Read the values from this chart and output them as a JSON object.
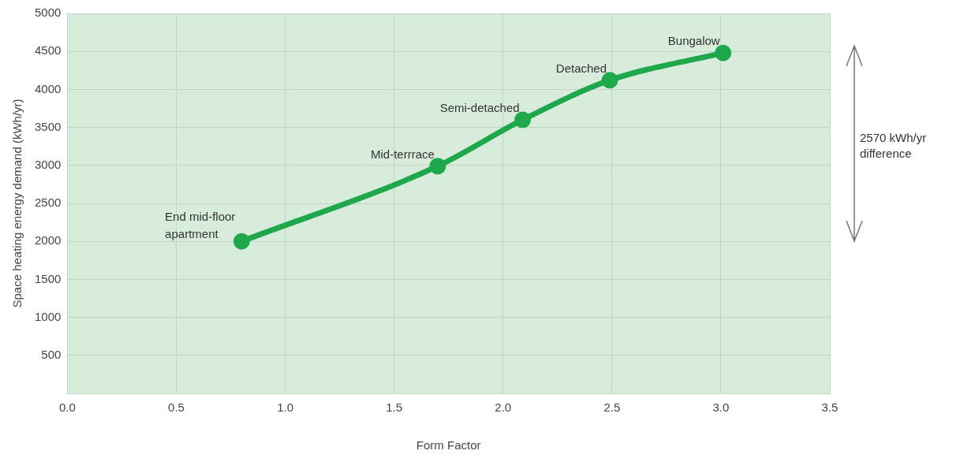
{
  "chart_data": {
    "type": "line",
    "xlabel": "Form Factor",
    "ylabel": "Space heating energy demand (kWh/yr)",
    "x": [
      0.8,
      1.7,
      2.09,
      2.49,
      3.01
    ],
    "series": [
      {
        "color": "#1ea84b",
        "values": [
          2000,
          2990,
          3600,
          4120,
          4480
        ]
      }
    ],
    "xlim": [
      0,
      3.5
    ],
    "xticks": [
      {
        "value": 0,
        "label": "0.0"
      },
      {
        "value": 0.5,
        "label": "0.5"
      },
      {
        "value": 1,
        "label": "1.0"
      },
      {
        "value": 1.5,
        "label": "1.5"
      },
      {
        "value": 2,
        "label": "2.0"
      },
      {
        "value": 2.5,
        "label": "2.5"
      },
      {
        "value": 3,
        "label": "3.0"
      },
      {
        "value": 3.5,
        "label": "3.5"
      }
    ],
    "ylim": [
      0,
      5000
    ],
    "yticks": [
      {
        "value": 0,
        "label": null
      },
      500,
      1000,
      1500,
      2000,
      2500,
      3000,
      3500,
      4000,
      4500,
      5000
    ],
    "grid": true,
    "marker": "circle",
    "line_style": "solid",
    "legend": false,
    "annotations": [
      {
        "text": "End mid-floor apartment",
        "x": 0.8,
        "y": 2000
      },
      {
        "text": "Mid-terrrace",
        "x": 1.7,
        "y": 2990
      },
      {
        "text": "Semi-detached",
        "x": 2.09,
        "y": 3600
      },
      {
        "text": "Detached",
        "x": 2.49,
        "y": 4120
      },
      {
        "text": "Bungalow",
        "x": 3.01,
        "y": 4480
      },
      "2570 kWh/yr difference"
    ]
  }
}
